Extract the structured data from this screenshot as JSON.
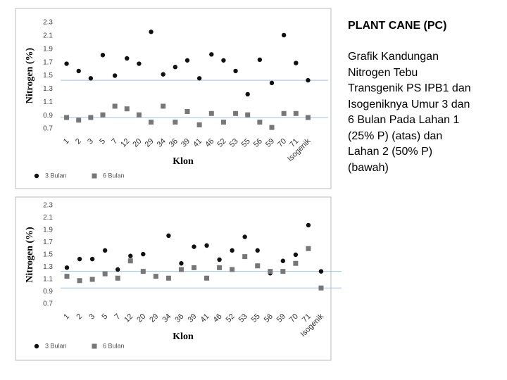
{
  "chart_data": [
    {
      "type": "dot",
      "y_label": "Nitrogen (%)",
      "x_label": "Klon",
      "categories": [
        "1",
        "2",
        "3",
        "5",
        "7",
        "12",
        "20",
        "29",
        "34",
        "36",
        "39",
        "41",
        "46",
        "52",
        "53",
        "55",
        "56",
        "59",
        "70",
        "71",
        "Isogenik"
      ],
      "series": [
        {
          "name": "3 Bulan",
          "color": "#111111",
          "marker": "circle",
          "values": [
            1.68,
            1.57,
            1.46,
            1.81,
            1.5,
            1.76,
            1.68,
            2.16,
            1.52,
            1.63,
            1.73,
            1.46,
            1.82,
            1.73,
            1.57,
            1.22,
            1.74,
            1.39,
            2.11,
            1.69,
            1.43
          ]
        },
        {
          "name": "6 Bulan",
          "color": "#777777",
          "marker": "square",
          "values": [
            0.87,
            0.83,
            0.87,
            0.91,
            1.04,
            1.0,
            0.91,
            0.8,
            1.04,
            0.8,
            0.96,
            0.76,
            0.93,
            0.8,
            0.93,
            0.91,
            0.8,
            0.72,
            0.93,
            0.93,
            0.87
          ]
        }
      ],
      "reference_lines": [
        1.43,
        0.87
      ],
      "reference_color": "#9dc3e6",
      "ylim": [
        0.7,
        2.3
      ],
      "yticks": [
        0.7,
        0.9,
        1.1,
        1.3,
        1.5,
        1.7,
        1.9,
        2.1,
        2.3
      ]
    },
    {
      "type": "dot",
      "y_label": "Nitrogen (%)",
      "x_label": "Klon",
      "categories": [
        "1",
        "2",
        "3",
        "5",
        "7",
        "12",
        "20",
        "29",
        "34",
        "36",
        "39",
        "41",
        "46",
        "52",
        "53",
        "55",
        "56",
        "59",
        "70",
        "71",
        "Isogenik"
      ],
      "series": [
        {
          "name": "3 Bulan",
          "color": "#111111",
          "marker": "circle",
          "values": [
            1.29,
            1.43,
            1.43,
            1.57,
            1.26,
            1.48,
            1.51,
            null,
            1.81,
            1.36,
            1.63,
            1.65,
            1.42,
            1.57,
            1.79,
            1.57,
            1.2,
            1.4,
            1.5,
            1.98,
            1.23
          ]
        },
        {
          "name": "6 Bulan",
          "color": "#777777",
          "marker": "square",
          "values": [
            1.15,
            1.08,
            1.1,
            1.19,
            1.12,
            1.4,
            1.23,
            1.15,
            1.12,
            1.26,
            1.29,
            1.12,
            1.29,
            1.26,
            1.47,
            1.32,
            1.23,
            1.23,
            1.36,
            1.6,
            0.96
          ]
        }
      ],
      "reference_lines": [
        1.23,
        0.96
      ],
      "reference_color": "#9dc3e6",
      "ylim": [
        0.7,
        2.3
      ],
      "yticks": [
        0.7,
        0.9,
        1.1,
        1.3,
        1.5,
        1.7,
        1.9,
        2.1,
        2.3
      ]
    }
  ],
  "side_text": {
    "title": "PLANT CANE (PC)",
    "lines": [
      "Grafik Kandungan",
      "Nitrogen Tebu",
      "Transgenik PS IPB1 dan",
      "Isogeniknya Umur 3 dan",
      "6 Bulan Pada Lahan 1",
      "(25% P) (atas) dan",
      "Lahan 2 (50% P)",
      "(bawah)"
    ]
  }
}
